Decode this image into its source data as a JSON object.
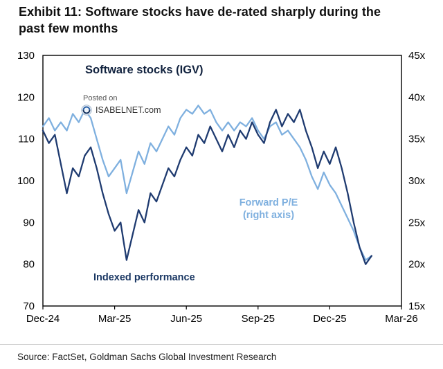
{
  "header": {
    "title": "Exhibit 11: Software stocks have de-rated sharply during the past few months"
  },
  "watermark": {
    "line1": "Posted on",
    "line2": "ISABELNET.com"
  },
  "annotations": {
    "chart_title": "Software stocks (IGV)",
    "forward_pe_line1": "Forward P/E",
    "forward_pe_line2": "(right axis)",
    "indexed_label": "Indexed performance"
  },
  "footer": {
    "source": "Source: FactSet, Goldman Sachs Global Investment Research"
  },
  "colors": {
    "indexed_line": "#1f3b70",
    "forward_pe_line": "#7fb0df",
    "axis": "#000000"
  },
  "chart_data": {
    "type": "line",
    "title": "Software stocks (IGV)",
    "x_axis": {
      "ticks": [
        "Dec-24",
        "Mar-25",
        "Jun-25",
        "Sep-25",
        "Dec-25",
        "Mar-26"
      ],
      "tick_positions": [
        0,
        3,
        6,
        9,
        12,
        15
      ],
      "range": [
        0,
        15
      ]
    },
    "left_axis": {
      "label": "Indexed performance",
      "ticks": [
        130,
        120,
        110,
        100,
        90,
        80,
        70
      ],
      "range": [
        70,
        130
      ]
    },
    "right_axis": {
      "label": "Forward P/E",
      "ticks": [
        "45x",
        "40x",
        "35x",
        "30x",
        "25x",
        "20x",
        "15x"
      ],
      "range": [
        15,
        45
      ]
    },
    "legend_position": "inline-annotations",
    "grid": false,
    "x": [
      0,
      0.25,
      0.5,
      0.75,
      1,
      1.25,
      1.5,
      1.75,
      2,
      2.25,
      2.5,
      2.75,
      3,
      3.25,
      3.5,
      3.75,
      4,
      4.25,
      4.5,
      4.75,
      5,
      5.25,
      5.5,
      5.75,
      6,
      6.25,
      6.5,
      6.75,
      7,
      7.25,
      7.5,
      7.75,
      8,
      8.25,
      8.5,
      8.75,
      9,
      9.25,
      9.5,
      9.75,
      10,
      10.25,
      10.5,
      10.75,
      11,
      11.25,
      11.5,
      11.75,
      12,
      12.25,
      12.5,
      12.75,
      13,
      13.25,
      13.5,
      13.75
    ],
    "series": [
      {
        "name": "Forward P/E",
        "axis": "right",
        "color": "#7fb0df",
        "values": [
          36.5,
          37.5,
          36,
          37,
          36,
          38,
          37,
          38.5,
          37.5,
          35,
          32.5,
          30.5,
          31.5,
          32.5,
          28.5,
          31,
          33.5,
          32,
          34.5,
          33.5,
          35,
          36.5,
          35.5,
          37.5,
          38.5,
          38,
          39,
          38,
          38.5,
          37,
          36,
          37,
          36,
          37,
          36.5,
          37.5,
          36,
          35,
          36.5,
          37,
          35.5,
          36,
          35,
          34,
          32.5,
          30.5,
          29,
          31,
          29.5,
          28.5,
          27,
          25.5,
          24,
          22,
          20.5,
          21
        ]
      },
      {
        "name": "Indexed performance",
        "axis": "left",
        "color": "#1f3b70",
        "values": [
          112,
          109,
          111,
          104,
          97,
          103,
          101,
          106,
          108,
          103,
          97,
          92,
          88,
          90,
          81,
          87,
          93,
          90,
          97,
          95,
          99,
          103,
          101,
          105,
          108,
          106,
          111,
          109,
          113,
          110,
          107,
          111,
          108,
          112,
          110,
          114,
          111,
          109,
          114,
          117,
          113,
          116,
          114,
          117,
          112,
          108,
          103,
          107,
          104,
          108,
          103,
          97,
          90,
          84,
          80,
          82
        ]
      }
    ]
  }
}
